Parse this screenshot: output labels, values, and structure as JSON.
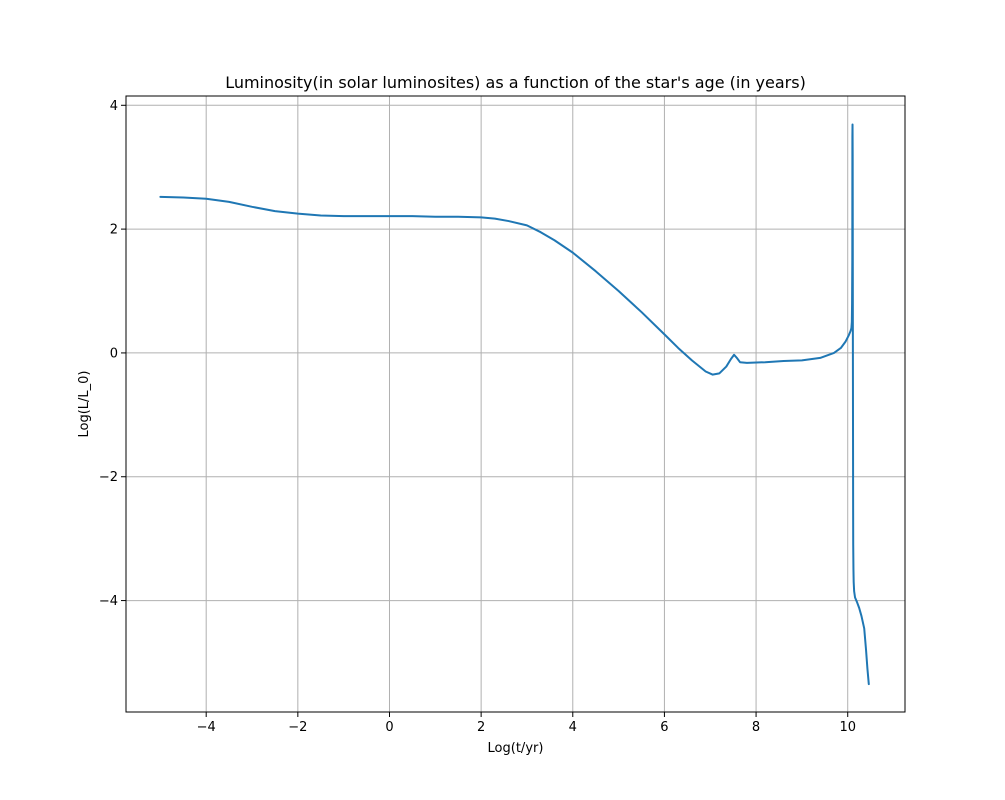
{
  "chart_data": {
    "type": "line",
    "title": "Luminosity(in solar luminosites) as a function of the star's age (in years)",
    "xlabel": "Log(t/yr)",
    "ylabel": "Log(L/L_0)",
    "xlim": [
      -5.75,
      11.25
    ],
    "ylim": [
      -5.8,
      4.15
    ],
    "xticks": [
      -4,
      -2,
      0,
      2,
      4,
      6,
      8,
      10
    ],
    "yticks": [
      -4,
      -2,
      0,
      2,
      4
    ],
    "xtick_labels": [
      "−4",
      "−2",
      "0",
      "2",
      "4",
      "6",
      "8",
      "10"
    ],
    "ytick_labels": [
      "−4",
      "−2",
      "0",
      "2",
      "4"
    ],
    "grid": true,
    "series": [
      {
        "color": "#1f77b4",
        "x": [
          -5.0,
          -4.5,
          -4.0,
          -3.5,
          -3.0,
          -2.5,
          -2.0,
          -1.5,
          -1.0,
          -0.5,
          0.0,
          0.5,
          1.0,
          1.5,
          2.0,
          2.3,
          2.6,
          3.0,
          3.3,
          3.6,
          4.0,
          4.5,
          5.0,
          5.5,
          6.0,
          6.3,
          6.6,
          6.9,
          7.05,
          7.2,
          7.35,
          7.45,
          7.52,
          7.58,
          7.65,
          7.8,
          8.2,
          8.6,
          9.0,
          9.4,
          9.7,
          9.85,
          9.95,
          10.02,
          10.06,
          10.08,
          10.09,
          10.095,
          10.1,
          10.102,
          10.105,
          10.108,
          10.11,
          10.112,
          10.115,
          10.118,
          10.12,
          10.125,
          10.13,
          10.14,
          10.16,
          10.2,
          10.25,
          10.3,
          10.36,
          10.4,
          10.43,
          10.46
        ],
        "y": [
          2.52,
          2.51,
          2.49,
          2.44,
          2.36,
          2.29,
          2.25,
          2.22,
          2.21,
          2.21,
          2.21,
          2.21,
          2.2,
          2.2,
          2.19,
          2.17,
          2.13,
          2.06,
          1.95,
          1.82,
          1.62,
          1.32,
          1.0,
          0.66,
          0.3,
          0.08,
          -0.12,
          -0.3,
          -0.35,
          -0.33,
          -0.22,
          -0.1,
          -0.03,
          -0.08,
          -0.15,
          -0.16,
          -0.15,
          -0.13,
          -0.12,
          -0.08,
          0.0,
          0.08,
          0.18,
          0.28,
          0.35,
          0.4,
          0.5,
          0.8,
          1.5,
          3.5,
          3.69,
          3.2,
          2.0,
          0.5,
          -1.0,
          -2.5,
          -3.1,
          -3.5,
          -3.7,
          -3.85,
          -3.95,
          -4.02,
          -4.12,
          -4.25,
          -4.45,
          -4.8,
          -5.1,
          -5.35
        ]
      }
    ]
  }
}
